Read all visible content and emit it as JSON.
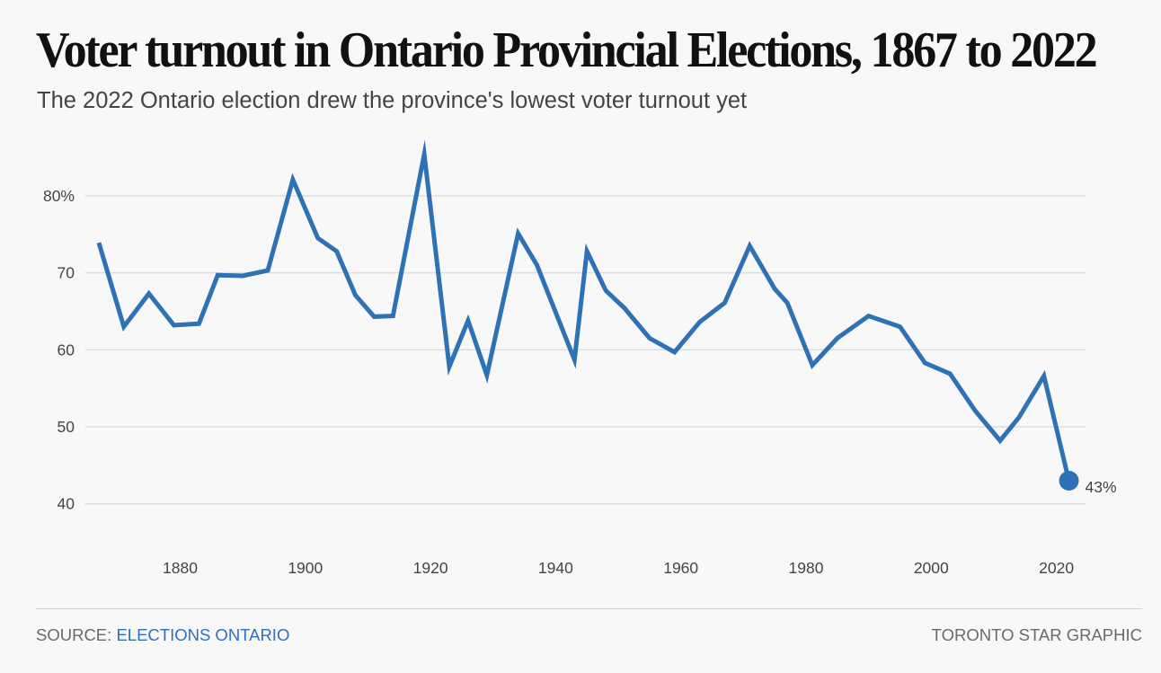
{
  "header": {
    "title": "Voter turnout in Ontario Provincial Elections, 1867 to 2022",
    "subtitle": "The 2022 Ontario election drew the province's lowest voter turnout yet"
  },
  "footer": {
    "source_prefix": "SOURCE: ",
    "source_link": "ELECTIONS ONTARIO",
    "credit": "TORONTO STAR GRAPHIC"
  },
  "colors": {
    "line": "#2e72b5",
    "grid": "#dedede",
    "link": "#2e6fbf"
  },
  "chart_data": {
    "type": "line",
    "title": "Voter turnout in Ontario Provincial Elections, 1867 to 2022",
    "subtitle": "The 2022 Ontario election drew the province's lowest voter turnout yet",
    "xlabel": "",
    "ylabel": "",
    "xlim": [
      1867,
      2022
    ],
    "ylim": [
      40,
      86
    ],
    "grid": true,
    "x_ticks": [
      1880,
      1900,
      1920,
      1940,
      1960,
      1980,
      2000,
      2020
    ],
    "x_tick_labels": [
      "1880",
      "1900",
      "1920",
      "1940",
      "1960",
      "1980",
      "2000",
      "2020"
    ],
    "y_ticks": [
      40,
      50,
      60,
      70,
      80
    ],
    "y_tick_labels": [
      "40",
      "50",
      "60",
      "70",
      "80%"
    ],
    "series": [
      {
        "name": "Voter turnout (%)",
        "x": [
          1867,
          1871,
          1875,
          1879,
          1883,
          1886,
          1890,
          1894,
          1898,
          1902,
          1905,
          1908,
          1911,
          1914,
          1919,
          1923,
          1926,
          1929,
          1934,
          1937,
          1943,
          1945,
          1948,
          1951,
          1955,
          1959,
          1963,
          1967,
          1971,
          1975,
          1977,
          1981,
          1985,
          1990,
          1995,
          1999,
          2003,
          2007,
          2011,
          2014,
          2018,
          2022
        ],
        "values": [
          73.9,
          63.0,
          67.3,
          63.2,
          63.4,
          69.7,
          69.6,
          70.3,
          82.1,
          74.5,
          72.8,
          67.1,
          64.3,
          64.4,
          85.4,
          57.8,
          63.8,
          56.7,
          75.1,
          71.0,
          58.7,
          72.8,
          67.7,
          65.4,
          61.5,
          59.7,
          63.6,
          66.1,
          73.5,
          67.9,
          66.1,
          58.0,
          61.5,
          64.4,
          63.0,
          58.3,
          56.9,
          52.1,
          48.2,
          51.2,
          56.6,
          43.0
        ]
      }
    ],
    "annotations": [
      {
        "x": 2022,
        "y": 43.0,
        "label": "43%",
        "marker": "dot"
      }
    ]
  }
}
